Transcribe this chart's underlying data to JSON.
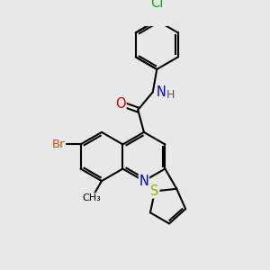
{
  "background_color": "#e8e8e8",
  "bond_color": "#000000",
  "bond_width": 1.5,
  "atom_colors": {
    "N": "#0000cc",
    "O": "#cc0000",
    "Br": "#cc5500",
    "Cl": "#00aa00",
    "S": "#aaaa00",
    "C": "#000000",
    "H": "#555555"
  },
  "font_size": 9.5
}
